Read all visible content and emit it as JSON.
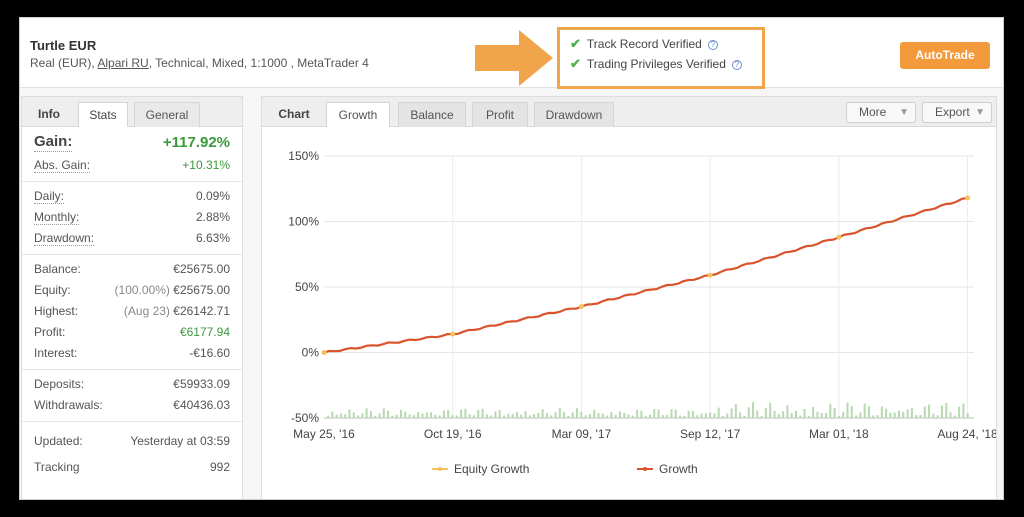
{
  "header": {
    "title": "Turtle EUR",
    "sub_prefix": "Real (EUR), ",
    "broker": "Alpari RU",
    "sub_suffix": ", Technical, Mixed, 1:1000 , MetaTrader 4",
    "verified": [
      "Track Record Verified",
      "Trading Privileges Verified"
    ],
    "autotrade_label": "AutoTrade"
  },
  "left_tabs": {
    "info": "Info",
    "stats": "Stats",
    "general": "General"
  },
  "stats": {
    "gain": {
      "label": "Gain:",
      "value": "+117.92%"
    },
    "abs_gain": {
      "label": "Abs. Gain:",
      "value": "+10.31%"
    },
    "daily": {
      "label": "Daily:",
      "value": "0.09%"
    },
    "monthly": {
      "label": "Monthly:",
      "value": "2.88%"
    },
    "drawdown": {
      "label": "Drawdown:",
      "value": "6.63%"
    },
    "balance": {
      "label": "Balance:",
      "value": "€25675.00"
    },
    "equity": {
      "label": "Equity:",
      "note": "(100.00%)",
      "value": "€25675.00"
    },
    "highest": {
      "label": "Highest:",
      "note": "(Aug 23)",
      "value": "€26142.71"
    },
    "profit": {
      "label": "Profit:",
      "value": "€6177.94"
    },
    "interest": {
      "label": "Interest:",
      "value": "-€16.60"
    },
    "deposits": {
      "label": "Deposits:",
      "value": "€59933.09"
    },
    "withdrawals": {
      "label": "Withdrawals:",
      "value": "€40436.03"
    },
    "updated": {
      "label": "Updated:",
      "value": "Yesterday at 03:59"
    },
    "tracking": {
      "label": "Tracking",
      "value": "992"
    }
  },
  "chart_tabs": {
    "chart": "Chart",
    "growth": "Growth",
    "balance": "Balance",
    "profit": "Profit",
    "drawdown": "Drawdown",
    "more": "More",
    "export": "Export"
  },
  "colors": {
    "growth": "#d9532b",
    "equity": "#f5c15a",
    "bars": "#b7d9b0",
    "accent": "#f39a3c"
  },
  "chart_data": {
    "type": "line",
    "x": [
      "May 25, '16",
      "Oct 19, '16",
      "Mar 09, '17",
      "Sep 12, '17",
      "Mar 01, '18",
      "Aug 24, '18"
    ],
    "x_tick_labels": [
      "May 25, '16",
      "Oct 19, '16",
      "Mar 09, '17",
      "Sep 12, '17",
      "Mar 01, '18",
      "Aug 24, '18"
    ],
    "y_tick_labels": [
      "150%",
      "100%",
      "50%",
      "0%",
      "-50%"
    ],
    "ylim": [
      -50,
      150
    ],
    "grid": true,
    "legend": "bottom",
    "series": [
      {
        "name": "Growth",
        "values": [
          0,
          14,
          35,
          59,
          88,
          118
        ]
      },
      {
        "name": "Equity Growth",
        "values": [
          0,
          14,
          35,
          59,
          88,
          118
        ]
      }
    ]
  }
}
